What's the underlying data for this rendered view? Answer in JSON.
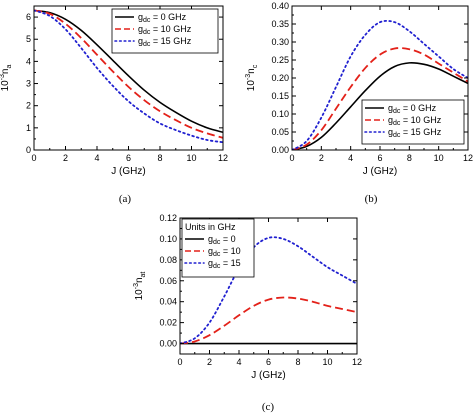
{
  "chart_data": [
    {
      "panel_caption": "(a)",
      "type": "line",
      "xlabel": "J (GHz)",
      "ylabel_base": "10",
      "ylabel_exp": "-3",
      "ylabel_var": "n",
      "ylabel_sub": "a",
      "xlim": [
        0,
        12
      ],
      "ylim": [
        0,
        6.5
      ],
      "xticks": [
        0,
        2,
        4,
        6,
        8,
        10,
        12
      ],
      "yticks": [
        0,
        1,
        2,
        3,
        4,
        5,
        6
      ],
      "legend_position": "top-right",
      "legend_title": "",
      "series": [
        {
          "label_main": "g",
          "label_sub": "dc",
          "label_rest": " = 0 GHz",
          "color": "#000000",
          "style": "solid",
          "x": [
            0,
            1,
            2,
            3,
            4,
            5,
            6,
            7,
            8,
            9,
            10,
            11,
            12
          ],
          "y": [
            6.3,
            6.2,
            5.9,
            5.4,
            4.75,
            4.05,
            3.35,
            2.7,
            2.15,
            1.7,
            1.3,
            1.0,
            0.8
          ]
        },
        {
          "label_main": "g",
          "label_sub": "dc",
          "label_rest": " = 10 GHz",
          "color": "#e32119",
          "style": "dashed",
          "x": [
            0,
            1,
            2,
            3,
            4,
            5,
            6,
            7,
            8,
            9,
            10,
            11,
            12
          ],
          "y": [
            6.3,
            6.15,
            5.7,
            5.05,
            4.3,
            3.55,
            2.85,
            2.25,
            1.75,
            1.35,
            1.0,
            0.75,
            0.55
          ]
        },
        {
          "label_main": "g",
          "label_sub": "dc",
          "label_rest": " = 15 GHz",
          "color": "#2020d0",
          "style": "dotted",
          "x": [
            0,
            1,
            2,
            3,
            4,
            5,
            6,
            7,
            8,
            9,
            10,
            11,
            12
          ],
          "y": [
            6.3,
            6.05,
            5.45,
            4.6,
            3.7,
            2.9,
            2.2,
            1.65,
            1.2,
            0.9,
            0.65,
            0.45,
            0.35
          ]
        }
      ]
    },
    {
      "panel_caption": "(b)",
      "type": "line",
      "xlabel": "J (GHz)",
      "ylabel_base": "10",
      "ylabel_exp": "-3",
      "ylabel_var": "n",
      "ylabel_sub": "c",
      "xlim": [
        0,
        12
      ],
      "ylim": [
        0,
        0.4
      ],
      "xticks": [
        0,
        2,
        4,
        6,
        8,
        10,
        12
      ],
      "yticks": [
        0.0,
        0.05,
        0.1,
        0.15,
        0.2,
        0.25,
        0.3,
        0.35,
        0.4
      ],
      "ytick_labels": [
        "0.00",
        "0.05",
        "0.10",
        "0.15",
        "0.20",
        "0.25",
        "0.30",
        "0.35",
        "0.40"
      ],
      "legend_position": "bottom-right",
      "legend_title": "",
      "series": [
        {
          "label_main": "g",
          "label_sub": "dc",
          "label_rest": " = 0 GHz",
          "color": "#000000",
          "style": "solid",
          "x": [
            0,
            1,
            2,
            3,
            4,
            5,
            6,
            7,
            8,
            9,
            10,
            11,
            12
          ],
          "y": [
            0.0,
            0.01,
            0.035,
            0.075,
            0.12,
            0.165,
            0.205,
            0.232,
            0.242,
            0.238,
            0.225,
            0.205,
            0.185
          ]
        },
        {
          "label_main": "g",
          "label_sub": "dc",
          "label_rest": " = 10 GHz",
          "color": "#e32119",
          "style": "dashed",
          "x": [
            0,
            1,
            2,
            3,
            4,
            5,
            6,
            7,
            8,
            9,
            10,
            11,
            12
          ],
          "y": [
            0.0,
            0.015,
            0.055,
            0.115,
            0.175,
            0.228,
            0.265,
            0.282,
            0.28,
            0.265,
            0.24,
            0.215,
            0.19
          ]
        },
        {
          "label_main": "g",
          "label_sub": "dc",
          "label_rest": " = 15 GHz",
          "color": "#2020d0",
          "style": "dotted",
          "x": [
            0,
            1,
            2,
            3,
            4,
            5,
            6,
            7,
            8,
            9,
            10,
            11,
            12
          ],
          "y": [
            0.0,
            0.025,
            0.09,
            0.175,
            0.26,
            0.32,
            0.355,
            0.355,
            0.33,
            0.295,
            0.26,
            0.225,
            0.2
          ]
        }
      ]
    },
    {
      "panel_caption": "(c)",
      "type": "line",
      "xlabel": "J (GHz)",
      "ylabel_base": "10",
      "ylabel_exp": "-3",
      "ylabel_var": "n",
      "ylabel_sub": "at",
      "xlim": [
        0,
        12
      ],
      "ylim": [
        -0.01,
        0.12
      ],
      "xticks": [
        0,
        2,
        4,
        6,
        8,
        10,
        12
      ],
      "yticks": [
        0.0,
        0.02,
        0.04,
        0.06,
        0.08,
        0.1,
        0.12
      ],
      "ytick_labels": [
        "0.00",
        "0.02",
        "0.04",
        "0.06",
        "0.08",
        "0.10",
        "0.12"
      ],
      "legend_position": "top-left",
      "legend_title": "Units in GHz",
      "series": [
        {
          "label_main": "g",
          "label_sub": "dc",
          "label_rest": " = 0",
          "color": "#000000",
          "style": "solid",
          "x": [
            0,
            1,
            2,
            3,
            4,
            5,
            6,
            7,
            8,
            9,
            10,
            11,
            12
          ],
          "y": [
            0,
            0,
            0,
            0,
            0,
            0,
            0,
            0,
            0,
            0,
            0,
            0,
            0
          ]
        },
        {
          "label_main": "g",
          "label_sub": "dc",
          "label_rest": " = 10",
          "color": "#e32119",
          "style": "dashed",
          "x": [
            0,
            1,
            2,
            3,
            4,
            5,
            6,
            7,
            8,
            9,
            10,
            11,
            12
          ],
          "y": [
            0.0,
            0.002,
            0.008,
            0.017,
            0.027,
            0.036,
            0.042,
            0.044,
            0.043,
            0.04,
            0.036,
            0.033,
            0.03
          ]
        },
        {
          "label_main": "g",
          "label_sub": "dc",
          "label_rest": " = 15",
          "color": "#2020d0",
          "style": "dotted",
          "x": [
            0,
            1,
            2,
            3,
            4,
            5,
            6,
            7,
            8,
            9,
            10,
            11,
            12
          ],
          "y": [
            0.0,
            0.005,
            0.02,
            0.045,
            0.072,
            0.092,
            0.101,
            0.1,
            0.093,
            0.083,
            0.073,
            0.065,
            0.057
          ]
        }
      ]
    }
  ]
}
